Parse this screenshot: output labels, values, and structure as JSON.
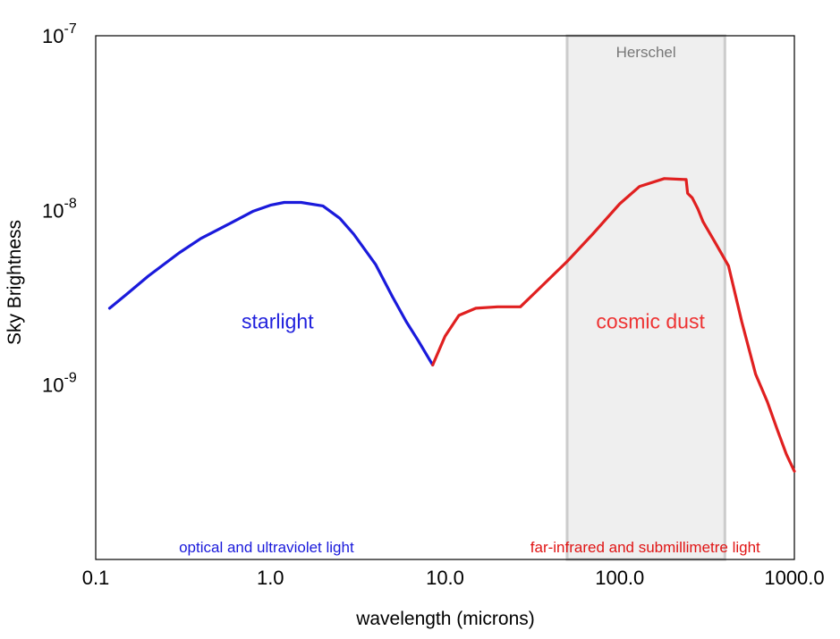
{
  "chart_data": {
    "type": "line",
    "x_scale": "log",
    "y_scale": "log",
    "xlim": [
      0.1,
      1000
    ],
    "ylim": [
      1e-10,
      1e-07
    ],
    "xlabel": "wavelength (microns)",
    "ylabel": "Sky Brightness",
    "x_ticks": [
      {
        "value": 0.1,
        "label": "0.1"
      },
      {
        "value": 1,
        "label": "1.0"
      },
      {
        "value": 10,
        "label": "10.0"
      },
      {
        "value": 100,
        "label": "100.0"
      },
      {
        "value": 1000,
        "label": "1000.0"
      }
    ],
    "y_ticks": [
      {
        "value": 1e-07,
        "base": "10",
        "exp": "-7"
      },
      {
        "value": 1e-08,
        "base": "10",
        "exp": "-8"
      },
      {
        "value": 1e-09,
        "base": "10",
        "exp": "-9"
      }
    ],
    "grid": false,
    "series": [
      {
        "color": "#1a1adb",
        "x": [
          0.12,
          0.15,
          0.2,
          0.3,
          0.4,
          0.6,
          0.8,
          1.0,
          1.2,
          1.5,
          2.0,
          2.5,
          3.0,
          4.0,
          5.0,
          6.0,
          7.0,
          8.5
        ],
        "y": [
          2.75e-09,
          3.3e-09,
          4.2e-09,
          5.7e-09,
          6.9e-09,
          8.5e-09,
          9.9e-09,
          1.07e-08,
          1.11e-08,
          1.11e-08,
          1.06e-08,
          9e-09,
          7.3e-09,
          4.9e-09,
          3.2e-09,
          2.3e-09,
          1.8e-09,
          1.3e-09
        ]
      },
      {
        "color": "#e02020",
        "x": [
          8.5,
          10,
          12,
          15,
          20,
          27,
          35,
          50,
          70,
          100,
          130,
          180,
          240,
          245,
          260,
          280,
          300,
          350,
          420,
          500,
          600,
          700,
          800,
          900,
          1000
        ],
        "y": [
          1.3e-09,
          1.9e-09,
          2.5e-09,
          2.75e-09,
          2.8e-09,
          2.8e-09,
          3.6e-09,
          5.1e-09,
          7.3e-09,
          1.09e-08,
          1.37e-08,
          1.52e-08,
          1.5e-08,
          1.25e-08,
          1.18e-08,
          1.02e-08,
          8.6e-09,
          6.6e-09,
          4.8e-09,
          2.3e-09,
          1.15e-09,
          8e-10,
          5.5e-10,
          4e-10,
          3.2e-10
        ]
      }
    ],
    "band": {
      "label": "Herschel",
      "x_range": [
        50,
        400
      ],
      "fill": "#efefef",
      "edge": "#cccccc",
      "label_color": "#777777"
    },
    "annotations": [
      {
        "text": "starlight",
        "x": 1.1,
        "y": 2.1e-09,
        "color": "#2222dd",
        "kind": "region"
      },
      {
        "text": "cosmic dust",
        "x": 150,
        "y": 2.1e-09,
        "color": "#ee3333",
        "kind": "region"
      },
      {
        "text": "optical and ultraviolet light",
        "x": 0.95,
        "y": 1.1e-10,
        "color": "#1a1adb",
        "kind": "band"
      },
      {
        "text": "far-infrared and submillimetre light",
        "x": 140,
        "y": 1.1e-10,
        "color": "#e01515",
        "kind": "band"
      }
    ]
  }
}
